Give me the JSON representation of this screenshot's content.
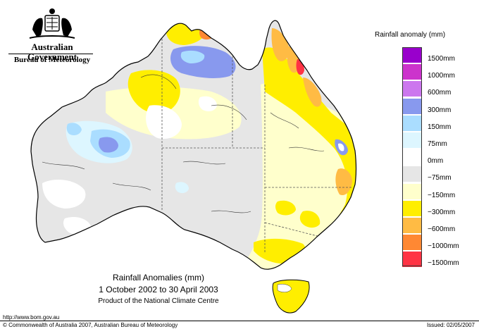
{
  "header": {
    "government": "Australian Government",
    "bureau": "Bureau of Meteorology"
  },
  "map": {
    "title": "Rainfall Anomalies (mm)",
    "period": "1 October 2002 to 30 April 2003",
    "product": "Product of the National Climate Centre"
  },
  "legend": {
    "title": "Rainfall anomaly (mm)",
    "items": [
      {
        "label": "1500mm",
        "color": "#9900cc"
      },
      {
        "label": "1000mm",
        "color": "#cc33cc"
      },
      {
        "label": "600mm",
        "color": "#cc77ee"
      },
      {
        "label": "300mm",
        "color": "#8899ee"
      },
      {
        "label": "150mm",
        "color": "#aaddff"
      },
      {
        "label": "75mm",
        "color": "#ddf6ff"
      },
      {
        "label": "0mm",
        "color": "#ffffff"
      },
      {
        "label": "−75mm",
        "color": "#e6e6e6"
      },
      {
        "label": "−150mm",
        "color": "#ffffcc"
      },
      {
        "label": "−300mm",
        "color": "#ffee00"
      },
      {
        "label": "−600mm",
        "color": "#ffbb44"
      },
      {
        "label": "−1000mm",
        "color": "#ff8833"
      },
      {
        "label": "−1500mm",
        "color": "#ff3344"
      }
    ]
  },
  "footer": {
    "url": "http://www.bom.gov.au",
    "copyright": "© Commonwealth of Australia 2007, Australian Bureau of Meteorology",
    "issued": "Issued: 02/05/2007"
  }
}
